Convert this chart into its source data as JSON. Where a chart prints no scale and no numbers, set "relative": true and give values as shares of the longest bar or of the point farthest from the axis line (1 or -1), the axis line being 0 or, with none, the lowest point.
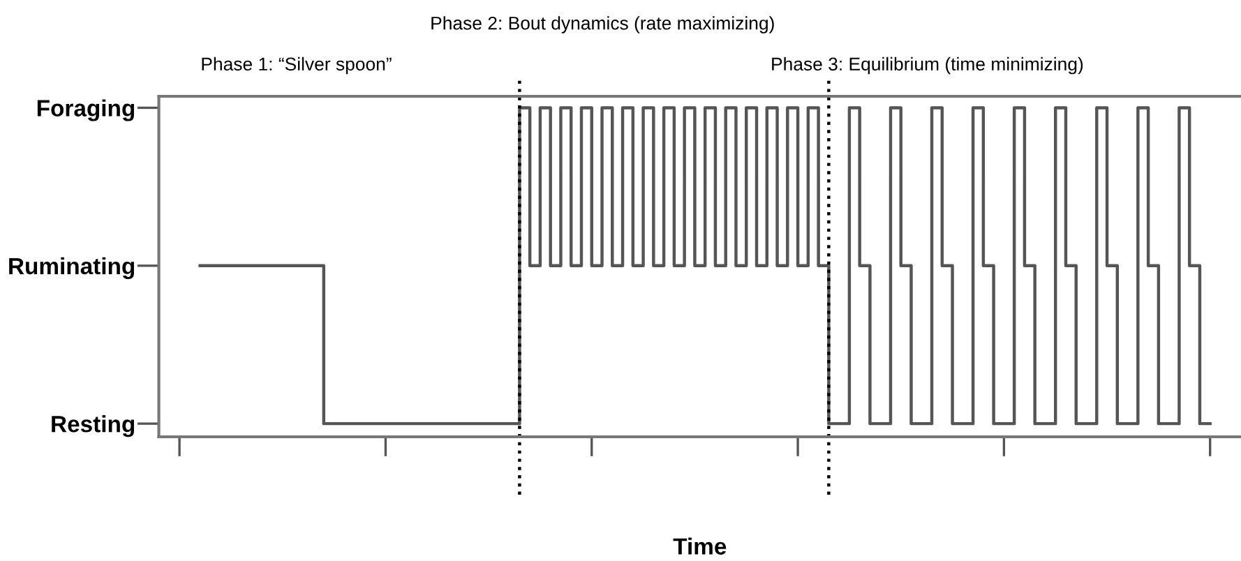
{
  "chart_data": {
    "type": "step",
    "xlabel": "Time",
    "annotations": [
      "Phase 1: “Silver spoon”",
      "Phase 2: Bout dynamics (rate maximizing)",
      "Phase 3: Equilibrium (time minimizing)",
      "Resting",
      "Ruminating",
      "Foraging"
    ],
    "relative": true,
    "categories": [
      null,
      null,
      null,
      null,
      null,
      null,
      null,
      null,
      null,
      null,
      null,
      null,
      null,
      null,
      null,
      null,
      null,
      null,
      null,
      null,
      null,
      null,
      null,
      null,
      null,
      null,
      null,
      null,
      null,
      null,
      null,
      null,
      null,
      null,
      null,
      null,
      null,
      null,
      null,
      null,
      null,
      null,
      null,
      null,
      null,
      null,
      null,
      null,
      null,
      null,
      null,
      null,
      null,
      null,
      null,
      null,
      null,
      null,
      null,
      null,
      null,
      null,
      null,
      null,
      null,
      null,
      null,
      null,
      null,
      null,
      null,
      null,
      null,
      null,
      null,
      null,
      null,
      null,
      null,
      null,
      null,
      null,
      null,
      null,
      null,
      null,
      null,
      null,
      null,
      null,
      null,
      null,
      null,
      null,
      null,
      null,
      null,
      null,
      null
    ],
    "series": [
      {
        "color": "#555555",
        "values": [
          0.52,
          0.52,
          0.52,
          0.52,
          0.52,
          0.52,
          0.52,
          0.52,
          0.52,
          0.52,
          0.52,
          0.52,
          0.04,
          0.04,
          0.04,
          0.04,
          0.04,
          0.04,
          0.04,
          0.04,
          0.04,
          0.04,
          0.04,
          0.04,
          0.04,
          0.04,
          0.04,
          0.04,
          0.04,
          0.04,
          0.04,
          1,
          0.52,
          1,
          0.52,
          1,
          0.52,
          1,
          0.52,
          1,
          0.52,
          1,
          0.52,
          1,
          0.52,
          1,
          0.52,
          1,
          0.52,
          1,
          0.52,
          1,
          0.52,
          1,
          0.52,
          1,
          0.52,
          1,
          0.52,
          1,
          0.52,
          0.04,
          0.04,
          1,
          0.52,
          0.04,
          0.04,
          1,
          0.52,
          0.04,
          0.04,
          1,
          0.52,
          0.04,
          0.04,
          1,
          0.52,
          0.04,
          0.04,
          1,
          0.52,
          0.04,
          0.04,
          1,
          0.52,
          0.04,
          0.04,
          1,
          0.52,
          0.04,
          0.04,
          1,
          0.52,
          0.04,
          0.04,
          1,
          0.52,
          0.04,
          0.04
        ]
      }
    ],
    "grid": false,
    "legend": false,
    "marker": "none",
    "line_style": "solid"
  }
}
